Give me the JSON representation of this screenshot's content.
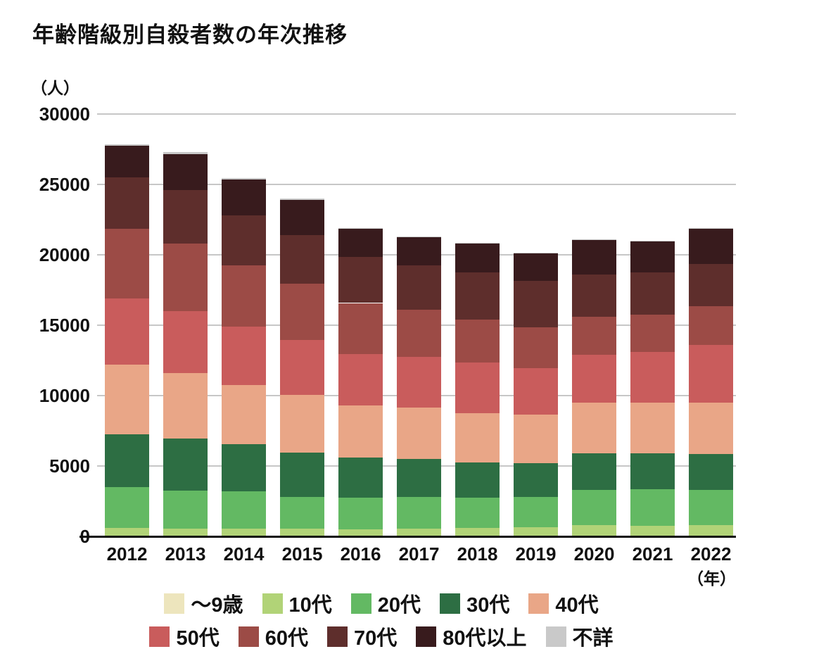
{
  "page": {
    "title": "年齢階級別自殺者数の年次推移",
    "y_unit_label": "（人）",
    "x_unit_label": "（年）"
  },
  "chart_data": {
    "type": "bar",
    "stacked": true,
    "title": "年齢階級別自殺者数の年次推移",
    "y_unit_label": "（人）",
    "x_unit_label": "（年）",
    "xlabel": "",
    "ylabel": "人",
    "ylim": [
      0,
      30000
    ],
    "yticks": [
      0,
      5000,
      10000,
      15000,
      20000,
      25000,
      30000
    ],
    "grid": "horizontal",
    "legend_position": "bottom-two-rows",
    "categories": [
      "2012",
      "2013",
      "2014",
      "2015",
      "2016",
      "2017",
      "2018",
      "2019",
      "2020",
      "2021",
      "2022"
    ],
    "series": [
      {
        "name": "～9歳",
        "color": "#ede5bd",
        "values": [
          8,
          10,
          13,
          12,
          9,
          10,
          7,
          8,
          14,
          11,
          15
        ]
      },
      {
        "name": "10代",
        "color": "#b1d377",
        "values": [
          579,
          555,
          525,
          542,
          511,
          557,
          592,
          651,
          763,
          739,
          783
        ]
      },
      {
        "name": "20代",
        "color": "#63b963",
        "values": [
          2930,
          2700,
          2650,
          2250,
          2235,
          2213,
          2152,
          2117,
          2521,
          2611,
          2483
        ]
      },
      {
        "name": "30代",
        "color": "#2d6e43",
        "values": [
          3750,
          3700,
          3350,
          3135,
          2824,
          2703,
          2521,
          2437,
          2610,
          2554,
          2545
        ]
      },
      {
        "name": "40代",
        "color": "#e9a687",
        "values": [
          4950,
          4635,
          4200,
          4115,
          3739,
          3668,
          3498,
          3426,
          3568,
          3575,
          3665
        ]
      },
      {
        "name": "50代",
        "color": "#c95c5c",
        "values": [
          4700,
          4415,
          4150,
          3885,
          3631,
          3593,
          3575,
          3307,
          3425,
          3618,
          4093
        ]
      },
      {
        "name": "60代",
        "color": "#9c4b46",
        "values": [
          4935,
          4800,
          4380,
          4030,
          3626,
          3339,
          3079,
          2902,
          2691,
          2637,
          2765
        ]
      },
      {
        "name": "70代",
        "color": "#5e2e2c",
        "values": [
          3665,
          3785,
          3550,
          3435,
          3253,
          3163,
          3349,
          3320,
          3026,
          3009,
          2994
        ]
      },
      {
        "name": "80代以上",
        "color": "#381b1d",
        "values": [
          2211,
          2563,
          2509,
          2521,
          2038,
          2044,
          2041,
          1979,
          2425,
          2214,
          2490
        ]
      },
      {
        "name": "不詳",
        "color": "#c9c9c9",
        "values": [
          130,
          120,
          100,
          100,
          31,
          31,
          26,
          22,
          38,
          39,
          48
        ]
      }
    ],
    "legend_rows": [
      [
        "～9歳",
        "10代",
        "20代",
        "30代",
        "40代"
      ],
      [
        "50代",
        "60代",
        "70代",
        "80代以上",
        "不詳"
      ]
    ]
  }
}
